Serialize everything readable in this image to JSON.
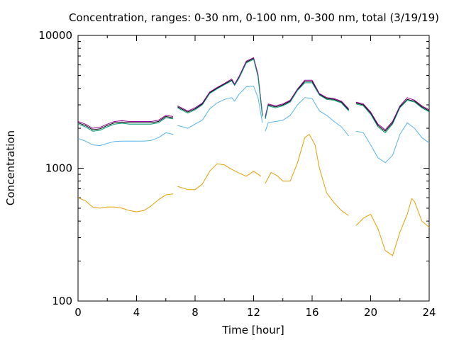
{
  "chart_data": {
    "type": "line",
    "title": "Concentration, ranges: 0-30 nm, 0-100 nm, 0-300 nm, total (3/19/19)",
    "xlabel": "Time [hour]",
    "ylabel": "Concentration",
    "xlim": [
      0,
      24
    ],
    "ylim": [
      100,
      10000
    ],
    "yscale": "log",
    "xticks": [
      0,
      4,
      8,
      12,
      16,
      20,
      24
    ],
    "xtick_labels": [
      "0",
      "4",
      "8",
      "12",
      "16",
      "20",
      "24"
    ],
    "yticks": [
      100,
      1000,
      10000
    ],
    "ytick_labels": [
      "100",
      "1000",
      "10000"
    ],
    "grid": false,
    "legend": "none",
    "series": [
      {
        "color": "#000000",
        "segments": [
          [
            [
              0,
              2200
            ],
            [
              0.5,
              2100
            ],
            [
              1,
              1950
            ],
            [
              1.5,
              1980
            ],
            [
              2,
              2100
            ],
            [
              2.5,
              2200
            ],
            [
              3,
              2230
            ],
            [
              3.5,
              2200
            ],
            [
              4,
              2200
            ],
            [
              4.5,
              2200
            ],
            [
              5,
              2200
            ],
            [
              5.5,
              2250
            ],
            [
              6,
              2450
            ],
            [
              6.5,
              2400
            ]
          ],
          [
            [
              6.8,
              2900
            ],
            [
              7.5,
              2650
            ],
            [
              8,
              2800
            ],
            [
              8.5,
              3050
            ],
            [
              9,
              3700
            ],
            [
              9.5,
              4000
            ],
            [
              10,
              4300
            ],
            [
              10.5,
              4600
            ],
            [
              10.7,
              4250
            ],
            [
              11,
              4800
            ],
            [
              11.5,
              6300
            ],
            [
              12,
              6700
            ],
            [
              12.3,
              5000
            ],
            [
              12.6,
              2500
            ]
          ],
          [
            [
              12.8,
              2400
            ],
            [
              13,
              3000
            ],
            [
              13.5,
              2900
            ],
            [
              14,
              3000
            ],
            [
              14.5,
              3200
            ],
            [
              15,
              3900
            ],
            [
              15.5,
              4500
            ],
            [
              16,
              4500
            ],
            [
              16.5,
              3600
            ],
            [
              17,
              3350
            ],
            [
              17.5,
              3300
            ],
            [
              18,
              3150
            ],
            [
              18.5,
              2750
            ]
          ],
          [
            [
              19,
              3100
            ],
            [
              19.5,
              3000
            ],
            [
              20,
              2600
            ],
            [
              20.5,
              2100
            ],
            [
              21,
              1900
            ],
            [
              21.5,
              2200
            ],
            [
              22,
              2900
            ],
            [
              22.5,
              3300
            ],
            [
              23,
              3200
            ],
            [
              23.5,
              2900
            ],
            [
              24,
              2700
            ]
          ]
        ]
      },
      {
        "color": "#94009e",
        "segments": [
          [
            [
              0,
              2250
            ],
            [
              0.5,
              2150
            ],
            [
              1,
              2000
            ],
            [
              1.5,
              2030
            ],
            [
              2,
              2150
            ],
            [
              2.5,
              2250
            ],
            [
              3,
              2280
            ],
            [
              3.5,
              2250
            ],
            [
              4,
              2250
            ],
            [
              4.5,
              2250
            ],
            [
              5,
              2250
            ],
            [
              5.5,
              2300
            ],
            [
              6,
              2500
            ],
            [
              6.5,
              2450
            ]
          ],
          [
            [
              6.8,
              2950
            ],
            [
              7.5,
              2700
            ],
            [
              8,
              2850
            ],
            [
              8.5,
              3100
            ],
            [
              9,
              3750
            ],
            [
              9.5,
              4050
            ],
            [
              10,
              4350
            ],
            [
              10.5,
              4700
            ],
            [
              10.7,
              4300
            ],
            [
              11,
              4900
            ],
            [
              11.5,
              6400
            ],
            [
              12,
              6800
            ],
            [
              12.3,
              5100
            ],
            [
              12.6,
              2550
            ]
          ],
          [
            [
              12.8,
              2450
            ],
            [
              13,
              3050
            ],
            [
              13.5,
              2950
            ],
            [
              14,
              3050
            ],
            [
              14.5,
              3250
            ],
            [
              15,
              3950
            ],
            [
              15.5,
              4600
            ],
            [
              16,
              4600
            ],
            [
              16.5,
              3650
            ],
            [
              17,
              3400
            ],
            [
              17.5,
              3350
            ],
            [
              18,
              3200
            ],
            [
              18.5,
              2800
            ]
          ],
          [
            [
              19,
              3150
            ],
            [
              19.5,
              3050
            ],
            [
              20,
              2650
            ],
            [
              20.5,
              2150
            ],
            [
              21,
              1950
            ],
            [
              21.5,
              2250
            ],
            [
              22,
              2950
            ],
            [
              22.5,
              3400
            ],
            [
              23,
              3250
            ],
            [
              23.5,
              2950
            ],
            [
              24,
              2750
            ]
          ]
        ]
      },
      {
        "color": "#009e73",
        "segments": [
          [
            [
              0,
              2150
            ],
            [
              0.5,
              2050
            ],
            [
              1,
              1900
            ],
            [
              1.5,
              1930
            ],
            [
              2,
              2050
            ],
            [
              2.5,
              2150
            ],
            [
              3,
              2180
            ],
            [
              3.5,
              2150
            ],
            [
              4,
              2150
            ],
            [
              4.5,
              2150
            ],
            [
              5,
              2150
            ],
            [
              5.5,
              2200
            ],
            [
              6,
              2400
            ],
            [
              6.5,
              2350
            ]
          ],
          [
            [
              6.8,
              2850
            ],
            [
              7.5,
              2600
            ],
            [
              8,
              2750
            ],
            [
              8.5,
              3000
            ],
            [
              9,
              3650
            ],
            [
              9.5,
              3950
            ],
            [
              10,
              4250
            ],
            [
              10.5,
              4550
            ],
            [
              10.7,
              4200
            ],
            [
              11,
              4750
            ],
            [
              11.5,
              6200
            ],
            [
              12,
              6600
            ],
            [
              12.3,
              4900
            ],
            [
              12.6,
              2450
            ]
          ],
          [
            [
              12.8,
              2350
            ],
            [
              13,
              2950
            ],
            [
              13.5,
              2850
            ],
            [
              14,
              2950
            ],
            [
              14.5,
              3150
            ],
            [
              15,
              3850
            ],
            [
              15.5,
              4400
            ],
            [
              16,
              4400
            ],
            [
              16.5,
              3550
            ],
            [
              17,
              3300
            ],
            [
              17.5,
              3250
            ],
            [
              18,
              3100
            ],
            [
              18.5,
              2700
            ]
          ],
          [
            [
              19,
              3050
            ],
            [
              19.5,
              2950
            ],
            [
              20,
              2550
            ],
            [
              20.5,
              2050
            ],
            [
              21,
              1850
            ],
            [
              21.5,
              2150
            ],
            [
              22,
              2850
            ],
            [
              22.5,
              3250
            ],
            [
              23,
              3150
            ],
            [
              23.5,
              2850
            ],
            [
              24,
              2650
            ]
          ]
        ]
      },
      {
        "color": "#56b4e9",
        "segments": [
          [
            [
              0,
              1680
            ],
            [
              0.5,
              1600
            ],
            [
              1,
              1500
            ],
            [
              1.5,
              1480
            ],
            [
              2,
              1540
            ],
            [
              2.5,
              1590
            ],
            [
              3,
              1600
            ],
            [
              3.5,
              1600
            ],
            [
              4,
              1600
            ],
            [
              4.5,
              1600
            ],
            [
              5,
              1620
            ],
            [
              5.5,
              1700
            ],
            [
              6,
              1850
            ],
            [
              6.5,
              1800
            ]
          ],
          [
            [
              6.8,
              2100
            ],
            [
              7.5,
              2000
            ],
            [
              8,
              2150
            ],
            [
              8.5,
              2300
            ],
            [
              9,
              2800
            ],
            [
              9.5,
              3100
            ],
            [
              10,
              3300
            ],
            [
              10.5,
              3400
            ],
            [
              10.7,
              3200
            ],
            [
              11,
              3600
            ],
            [
              11.5,
              4100
            ],
            [
              12,
              4150
            ],
            [
              12.3,
              3400
            ],
            [
              12.6,
              2200
            ]
          ],
          [
            [
              12.8,
              1900
            ],
            [
              13,
              2200
            ],
            [
              13.5,
              2250
            ],
            [
              14,
              2300
            ],
            [
              14.5,
              2500
            ],
            [
              15,
              3000
            ],
            [
              15.5,
              3400
            ],
            [
              16,
              3350
            ],
            [
              16.5,
              2700
            ],
            [
              17,
              2500
            ],
            [
              17.5,
              2250
            ],
            [
              18,
              2050
            ],
            [
              18.5,
              1750
            ]
          ],
          [
            [
              19,
              1900
            ],
            [
              19.5,
              1850
            ],
            [
              20,
              1500
            ],
            [
              20.5,
              1200
            ],
            [
              21,
              1100
            ],
            [
              21.5,
              1250
            ],
            [
              22,
              1800
            ],
            [
              22.5,
              2200
            ],
            [
              23,
              2000
            ],
            [
              23.5,
              1700
            ],
            [
              24,
              1550
            ]
          ]
        ]
      },
      {
        "color": "#e69f00",
        "segments": [
          [
            [
              0,
              600
            ],
            [
              0.5,
              570
            ],
            [
              1,
              510
            ],
            [
              1.5,
              500
            ],
            [
              2,
              510
            ],
            [
              2.5,
              510
            ],
            [
              3,
              500
            ],
            [
              3.5,
              480
            ],
            [
              4,
              470
            ],
            [
              4.5,
              480
            ],
            [
              5,
              520
            ],
            [
              5.5,
              580
            ],
            [
              6,
              630
            ],
            [
              6.5,
              640
            ]
          ],
          [
            [
              6.8,
              730
            ],
            [
              7.5,
              690
            ],
            [
              8,
              690
            ],
            [
              8.5,
              760
            ],
            [
              9,
              950
            ],
            [
              9.5,
              1080
            ],
            [
              10,
              1060
            ],
            [
              10.5,
              980
            ],
            [
              11,
              920
            ],
            [
              11.5,
              870
            ],
            [
              12,
              950
            ],
            [
              12.5,
              870
            ]
          ],
          [
            [
              12.8,
              770
            ],
            [
              13.2,
              930
            ],
            [
              13.6,
              880
            ],
            [
              14,
              800
            ],
            [
              14.5,
              800
            ],
            [
              15,
              1100
            ],
            [
              15.5,
              1700
            ],
            [
              15.8,
              1800
            ],
            [
              16.2,
              1500
            ],
            [
              16.5,
              1000
            ],
            [
              17,
              650
            ],
            [
              17.5,
              550
            ],
            [
              18,
              480
            ],
            [
              18.5,
              440
            ]
          ],
          [
            [
              19,
              370
            ],
            [
              19.5,
              420
            ],
            [
              20,
              450
            ],
            [
              20.5,
              350
            ],
            [
              21,
              240
            ],
            [
              21.5,
              220
            ],
            [
              22,
              330
            ],
            [
              22.5,
              450
            ],
            [
              22.8,
              590
            ],
            [
              23,
              560
            ],
            [
              23.5,
              400
            ],
            [
              24,
              360
            ]
          ]
        ]
      }
    ]
  }
}
